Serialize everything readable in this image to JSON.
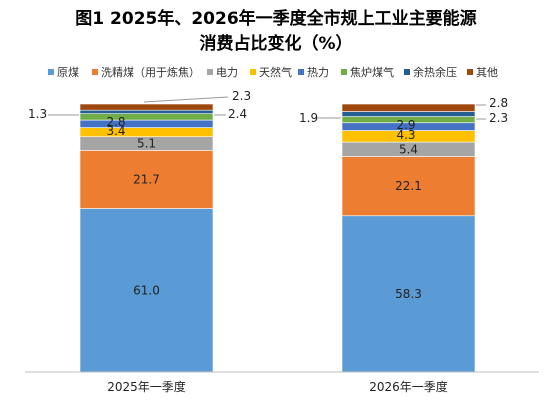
{
  "chart_data": {
    "type": "bar",
    "stacked": true,
    "title": [
      "图1  2025年、2026年一季度全市规上工业主要能源",
      "消费占比变化（%）"
    ],
    "categories": [
      "2025年一季度",
      "2026年一季度"
    ],
    "series": [
      {
        "name": "原煤",
        "color": "#5B9BD5",
        "values": [
          61.0,
          58.3
        ]
      },
      {
        "name": "洗精煤（用于炼焦）",
        "color": "#ED7D31",
        "values": [
          21.7,
          22.1
        ]
      },
      {
        "name": "电力",
        "color": "#A5A5A5",
        "values": [
          5.1,
          5.4
        ]
      },
      {
        "name": "天然气",
        "color": "#FFC000",
        "values": [
          3.4,
          4.3
        ]
      },
      {
        "name": "热力",
        "color": "#4472C4",
        "values": [
          2.8,
          2.9
        ]
      },
      {
        "name": "焦炉煤气",
        "color": "#70AD47",
        "values": [
          2.4,
          2.3
        ]
      },
      {
        "name": "余热余压",
        "color": "#255E91",
        "values": [
          1.3,
          1.9
        ]
      },
      {
        "name": "其他",
        "color": "#9E480E",
        "values": [
          2.3,
          2.8
        ]
      }
    ],
    "value_labels": [
      [
        "61.0",
        "21.7",
        "5.1",
        "3.4",
        "2.8",
        "2.4",
        "1.3",
        "2.3"
      ],
      [
        "58.3",
        "22.1",
        "5.4",
        "4.3",
        "2.9",
        "2.3",
        "1.9",
        "2.8"
      ]
    ],
    "ylim": [
      0,
      100
    ],
    "legend_position": "top",
    "grid": false
  }
}
